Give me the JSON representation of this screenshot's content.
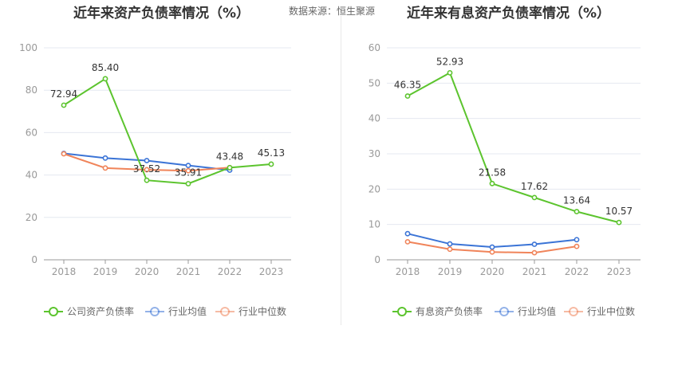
{
  "source_text": "数据来源：恒生聚源",
  "colors": {
    "company": "#5cc42e",
    "avg": "#3b74d6",
    "median": "#f0845a",
    "grid": "#e4e8f0",
    "axis": "#999999"
  },
  "chart_data": [
    {
      "type": "line",
      "title": "近年来资产负债率情况（%）",
      "categories": [
        "2018",
        "2019",
        "2020",
        "2021",
        "2022",
        "2023"
      ],
      "ylim": [
        0,
        100
      ],
      "yticks": [
        0,
        20,
        40,
        60,
        80,
        100
      ],
      "grid": true,
      "legend_position": "bottom",
      "series": [
        {
          "name": "公司资产负债率",
          "values": [
            72.94,
            85.4,
            37.52,
            35.91,
            43.48,
            45.13
          ],
          "labels": [
            "72.94",
            "85.40",
            "37.52",
            "35.91",
            "43.48",
            "45.13"
          ]
        },
        {
          "name": "行业均值",
          "values": [
            50.2,
            48.0,
            46.8,
            44.5,
            42.3,
            null
          ]
        },
        {
          "name": "行业中位数",
          "values": [
            50.0,
            43.3,
            42.5,
            42.0,
            43.5,
            null
          ]
        }
      ]
    },
    {
      "type": "line",
      "title": "近年来有息资产负债率情况（%）",
      "categories": [
        "2018",
        "2019",
        "2020",
        "2021",
        "2022",
        "2023"
      ],
      "ylim": [
        0,
        60
      ],
      "yticks": [
        0,
        10,
        20,
        30,
        40,
        50,
        60
      ],
      "grid": true,
      "legend_position": "bottom",
      "series": [
        {
          "name": "有息资产负债率",
          "values": [
            46.35,
            52.93,
            21.58,
            17.62,
            13.64,
            10.57
          ],
          "labels": [
            "46.35",
            "52.93",
            "21.58",
            "17.62",
            "13.64",
            "10.57"
          ]
        },
        {
          "name": "行业均值",
          "values": [
            7.4,
            4.5,
            3.6,
            4.4,
            5.7,
            null
          ]
        },
        {
          "name": "行业中位数",
          "values": [
            5.1,
            3.0,
            2.2,
            2.0,
            3.8,
            null
          ]
        }
      ]
    }
  ]
}
